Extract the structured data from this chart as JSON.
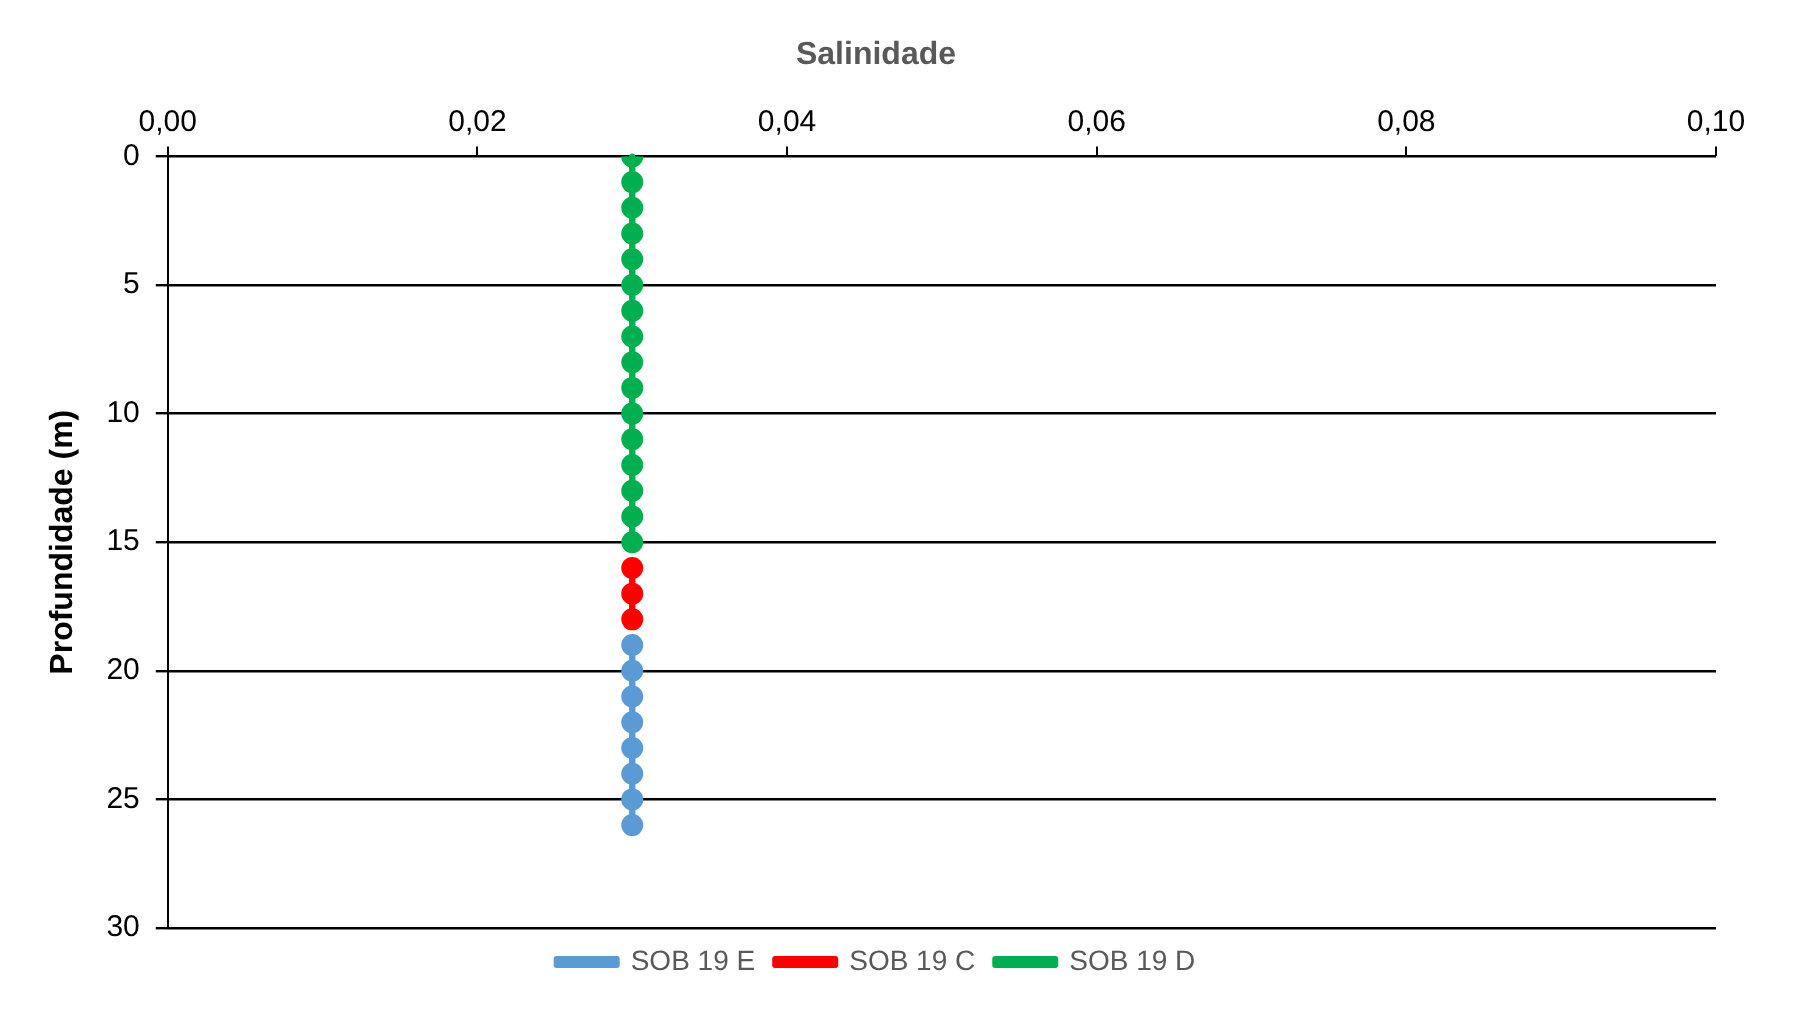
{
  "chart_data": {
    "type": "line",
    "orientation": "horizontal",
    "title": "Salinidade",
    "ylabel": "Profundidade (m)",
    "xlim": [
      0,
      0.1
    ],
    "xticks": [
      {
        "value": 0,
        "label": "0,00"
      },
      {
        "value": 0.02,
        "label": "0,02"
      },
      {
        "value": 0.04,
        "label": "0,04"
      },
      {
        "value": 0.06,
        "label": "0,06"
      },
      {
        "value": 0.08,
        "label": "0,08"
      },
      {
        "value": 0.1,
        "label": "0,10"
      }
    ],
    "ylim": [
      30,
      0
    ],
    "yticks": [
      0,
      5,
      10,
      15,
      20,
      25,
      30
    ],
    "grid": "y",
    "legend": "bottom",
    "marker": "circle",
    "line_style": "solid",
    "series": [
      {
        "name": "SOB 19 E",
        "color": "#5b9bd5",
        "x": [
          19,
          20,
          21,
          22,
          23,
          24,
          25,
          26
        ],
        "values": [
          0.03,
          0.03,
          0.03,
          0.03,
          0.03,
          0.03,
          0.03,
          0.03
        ]
      },
      {
        "name": "SOB 19 C",
        "color": "#ff0000",
        "x": [
          16,
          17,
          18
        ],
        "values": [
          0.03,
          0.03,
          0.03
        ]
      },
      {
        "name": "SOB 19 D",
        "color": "#00b050",
        "x": [
          0,
          1,
          2,
          3,
          4,
          5,
          6,
          7,
          8,
          9,
          10,
          11,
          12,
          13,
          14,
          15
        ],
        "values": [
          0.03,
          0.03,
          0.03,
          0.03,
          0.03,
          0.03,
          0.03,
          0.03,
          0.03,
          0.03,
          0.03,
          0.03,
          0.03,
          0.03,
          0.03,
          0.03
        ]
      }
    ]
  }
}
